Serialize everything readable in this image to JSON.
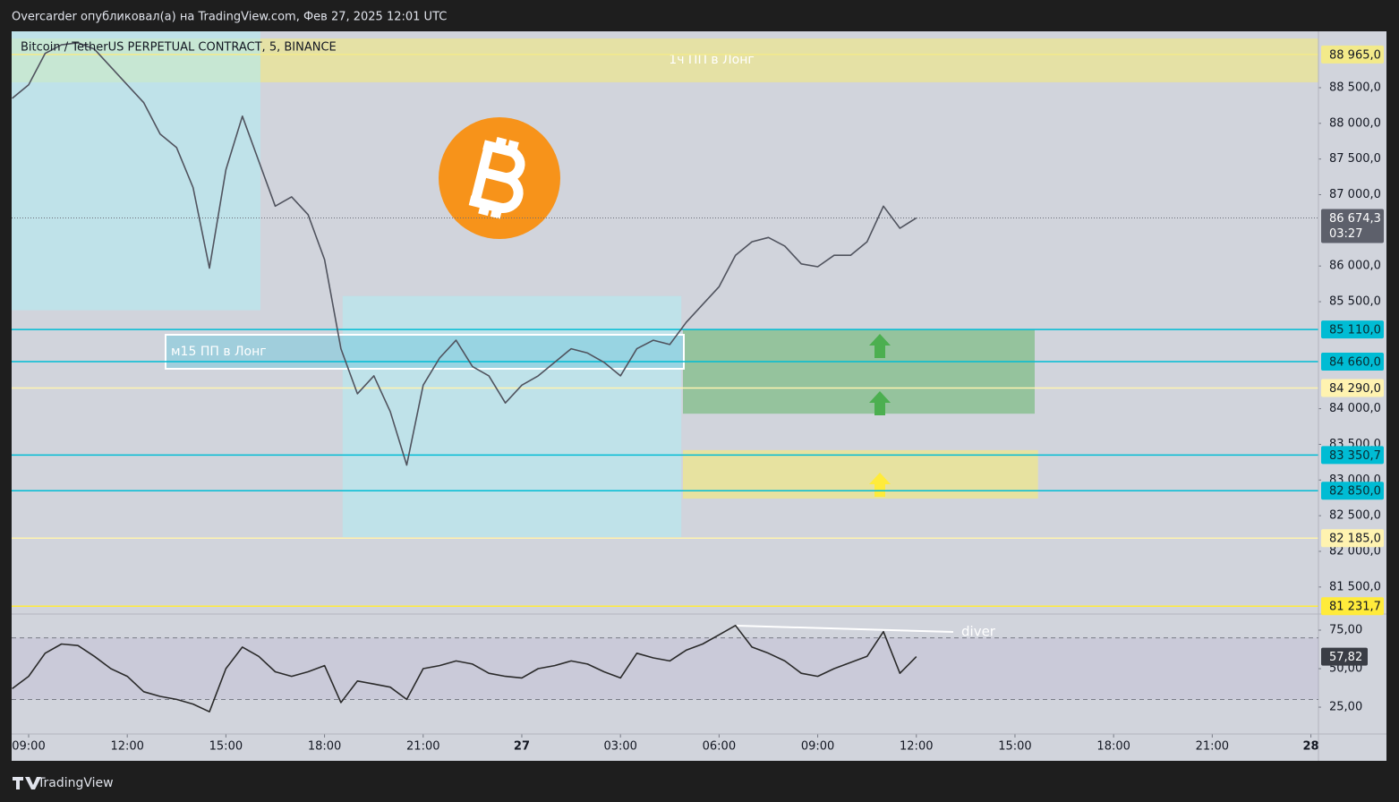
{
  "header": "Overcarder опубликовал(а) на TradingView.com, Фев 27, 2025 12:01 UTC",
  "footer": "TradingView",
  "chart_data": [
    {
      "type": "line",
      "title": "Bitcoin / TetherUS PERPETUAL CONTRACT, 5, BINANCE",
      "x": [
        -0.5,
        0,
        0.5,
        1,
        1.5,
        2,
        2.5,
        3,
        3.5,
        4,
        4.5,
        5,
        5.5,
        6,
        6.5,
        7,
        7.5,
        8,
        8.5,
        9,
        9.5,
        10,
        10.5,
        11,
        11.5,
        12,
        12.5,
        13,
        13.5,
        14,
        14.5,
        15,
        15.5,
        16,
        16.5,
        17,
        17.5,
        18,
        18.5,
        19,
        19.5,
        20,
        20.5,
        21,
        21.5,
        22,
        22.5,
        23,
        23.5,
        24,
        24.5,
        25,
        25.5,
        26,
        26.5,
        27
      ],
      "values": [
        88350,
        88540,
        88980,
        89100,
        89130,
        89040,
        88790,
        88540,
        88290,
        87850,
        87660,
        87100,
        85970,
        87350,
        88100,
        87470,
        86840,
        86970,
        86720,
        86090,
        84840,
        84210,
        84460,
        83960,
        83210,
        84330,
        84710,
        84960,
        84590,
        84460,
        84080,
        84330,
        84460,
        84650,
        84840,
        84780,
        84650,
        84460,
        84840,
        84960,
        84900,
        85210,
        85460,
        85710,
        86150,
        86340,
        86400,
        86280,
        86030,
        85990,
        86150,
        86150,
        86340,
        86840,
        86530,
        86674.3
      ],
      "color": "#50535e",
      "xlim": [
        -0.517,
        39.23
      ],
      "xticks": [
        {
          "value": 0,
          "label": "09:00"
        },
        {
          "value": 3,
          "label": "12:00"
        },
        {
          "value": 6,
          "label": "15:00"
        },
        {
          "value": 9,
          "label": "18:00"
        },
        {
          "value": 12,
          "label": "21:00"
        },
        {
          "value": 15,
          "label": "27"
        },
        {
          "value": 18,
          "label": "03:00"
        },
        {
          "value": 21,
          "label": "06:00"
        },
        {
          "value": 24,
          "label": "09:00"
        },
        {
          "value": 27,
          "label": "12:00"
        },
        {
          "value": 30,
          "label": "15:00"
        },
        {
          "value": 33,
          "label": "18:00"
        },
        {
          "value": 36,
          "label": "21:00"
        },
        {
          "value": 39,
          "label": "28"
        }
      ],
      "ylim": [
        81134,
        89290
      ],
      "yticks": [
        {
          "value": 88500,
          "label": "88 500,0"
        },
        {
          "value": 88000,
          "label": "88 000,0"
        },
        {
          "value": 87500,
          "label": "87 500,0"
        },
        {
          "value": 87000,
          "label": "87 000,0"
        },
        {
          "value": 86000,
          "label": "86 000,0"
        },
        {
          "value": 85500,
          "label": "85 500,0"
        },
        {
          "value": 84000,
          "label": "84 000,0"
        },
        {
          "value": 83500,
          "label": "83 500,0"
        },
        {
          "value": 83000,
          "label": "83 000,0"
        },
        {
          "value": 82500,
          "label": "82 500,0"
        },
        {
          "value": 82000,
          "label": "82 000,0"
        },
        {
          "value": 81500,
          "label": "81 500,0"
        }
      ],
      "current": {
        "value": 86674.3,
        "label": "86 674,3",
        "countdown": "03:27"
      },
      "levels": [
        {
          "value": 88965,
          "label": "88 965,0",
          "color": "#f3ea8a"
        },
        {
          "value": 85110,
          "label": "85 110,0",
          "color": "#00bcd4"
        },
        {
          "value": 84660,
          "label": "84 660,0",
          "color": "#00bcd4"
        },
        {
          "value": 84290,
          "label": "84 290,0",
          "color": "#fff3b0"
        },
        {
          "value": 83350.7,
          "label": "83 350,7",
          "color": "#00bcd4"
        },
        {
          "value": 82850,
          "label": "82 850,0",
          "color": "#00bcd4"
        },
        {
          "value": 82185,
          "label": "82 185,0",
          "color": "#fff3b0"
        },
        {
          "value": 81231.7,
          "label": "81 231,7",
          "color": "#ffeb3b"
        }
      ],
      "zones": [
        {
          "x": [
            -0.517,
            39.23
          ],
          "y": [
            88575,
            89190
          ],
          "color": "rgba(245,235,120,0.55)"
        },
        {
          "x": [
            -0.517,
            7.05
          ],
          "y": [
            85380,
            89290
          ],
          "color": "rgba(178,235,242,0.6)"
        },
        {
          "x": [
            9.55,
            19.85
          ],
          "y": [
            82200,
            85580
          ],
          "color": "rgba(178,235,242,0.6)"
        },
        {
          "x": [
            19.9,
            30.6
          ],
          "y": [
            83930,
            85110
          ],
          "color": "rgba(76,175,80,0.45)"
        },
        {
          "x": [
            19.9,
            30.7
          ],
          "y": [
            82740,
            83420
          ],
          "color": "rgba(245,235,120,0.6)"
        }
      ],
      "annotations": [
        "1ч ПП в Лонг",
        "м15 ПП в Лонг"
      ]
    },
    {
      "type": "line",
      "x": [
        -0.5,
        0,
        0.5,
        1,
        1.5,
        2,
        2.5,
        3,
        3.5,
        4,
        4.5,
        5,
        5.5,
        6,
        6.5,
        7,
        7.5,
        8,
        8.5,
        9,
        9.5,
        10,
        10.5,
        11,
        11.5,
        12,
        12.5,
        13,
        13.5,
        14,
        14.5,
        15,
        15.5,
        16,
        16.5,
        17,
        17.5,
        18,
        18.5,
        19,
        19.5,
        20,
        20.5,
        21,
        21.5,
        22,
        22.5,
        23,
        23.5,
        24,
        24.5,
        25,
        25.5,
        26,
        26.5,
        27
      ],
      "values": [
        37,
        45,
        60,
        66,
        65,
        58,
        50,
        45,
        35,
        32,
        30,
        27,
        22,
        50,
        64,
        58,
        48,
        45,
        48,
        52,
        28,
        42,
        40,
        38,
        30,
        50,
        52,
        55,
        53,
        47,
        45,
        44,
        50,
        52,
        55,
        53,
        48,
        44,
        60,
        57,
        55,
        62,
        66,
        72,
        78,
        64,
        60,
        55,
        47,
        45,
        50,
        54,
        58,
        74,
        47,
        57.82
      ],
      "color": "#2a2a2a",
      "xlim": [
        -0.517,
        39.23
      ],
      "ylim": [
        7.6,
        84.3
      ],
      "yticks": [
        {
          "value": 75,
          "label": "75,00"
        },
        {
          "value": 50,
          "label": "50,00"
        },
        {
          "value": 25,
          "label": "25,00"
        }
      ],
      "bands": [
        30,
        70
      ],
      "current": {
        "value": 57.82,
        "label": "57,82"
      },
      "annotation": "diver"
    }
  ]
}
